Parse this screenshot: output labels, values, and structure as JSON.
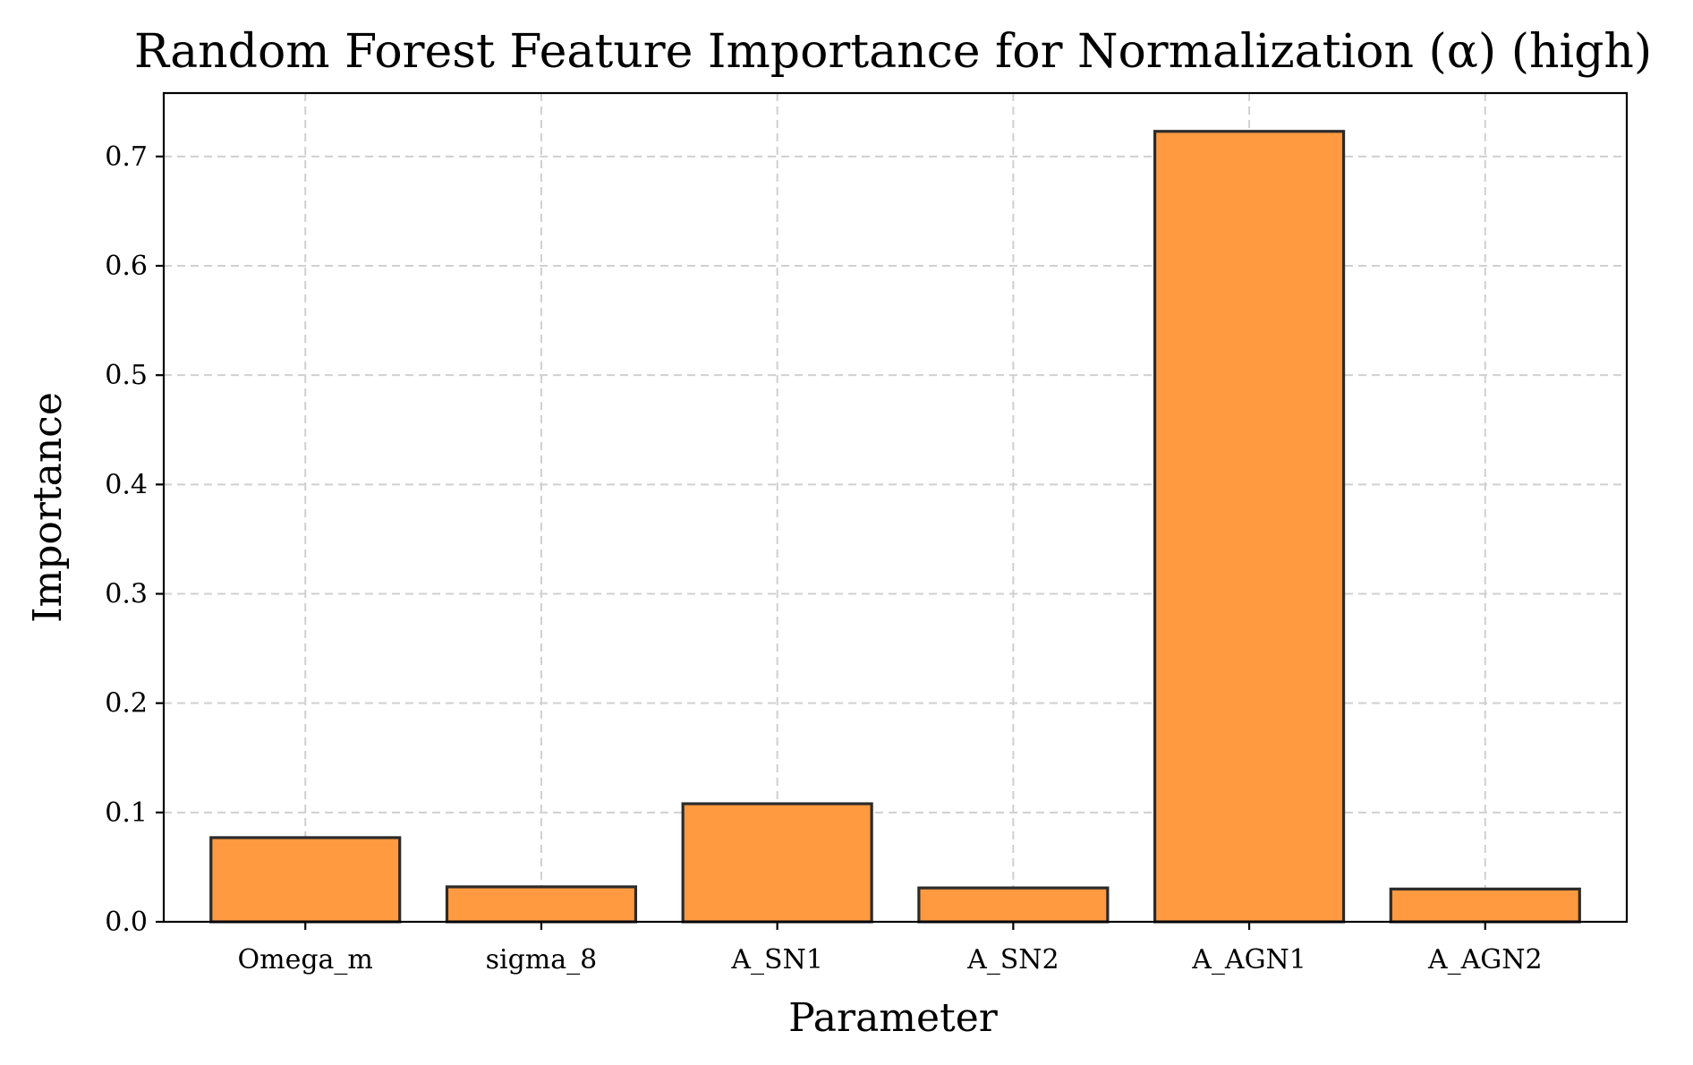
{
  "chart_data": {
    "type": "bar",
    "title": "Random Forest Feature Importance for Normalization (α) (high)",
    "xlabel": "Parameter",
    "ylabel": "Importance",
    "categories": [
      "Omega_m",
      "sigma_8",
      "A_SN1",
      "A_SN2",
      "A_AGN1",
      "A_AGN2"
    ],
    "values": [
      0.077,
      0.032,
      0.108,
      0.031,
      0.723,
      0.03
    ],
    "ylim": [
      0,
      0.758
    ],
    "yticks": [
      0.0,
      0.1,
      0.2,
      0.3,
      0.4,
      0.5,
      0.6,
      0.7
    ],
    "ytick_labels": [
      "0.0",
      "0.1",
      "0.2",
      "0.3",
      "0.4",
      "0.5",
      "0.6",
      "0.7"
    ],
    "grid": true,
    "bar_color": "#ff9a40",
    "edge_color": "#2b2b2b"
  }
}
